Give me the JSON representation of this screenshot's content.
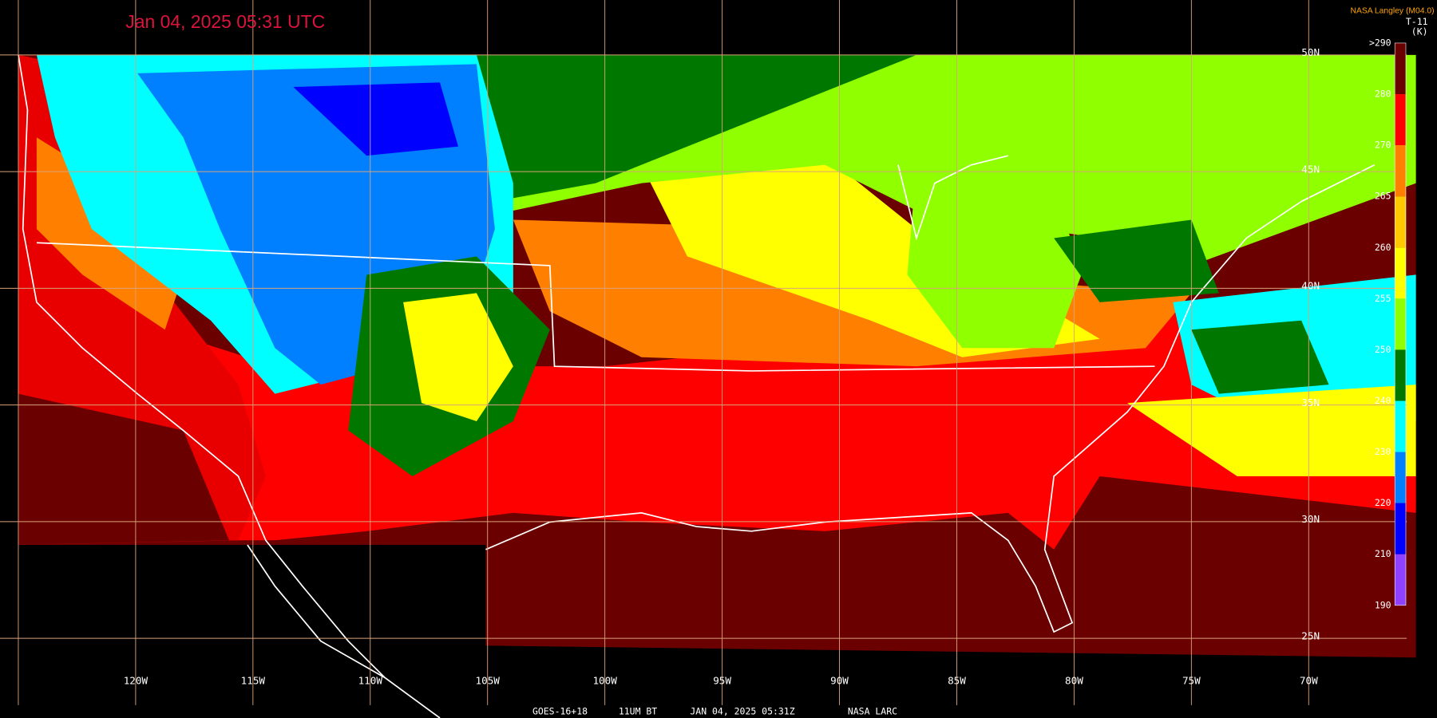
{
  "header": {
    "title": "Jan 04, 2025 05:31 UTC",
    "credit": "NASA Langley (M04.0)",
    "channel": "T-11",
    "unit": "(K)"
  },
  "grid": {
    "lon_labels": [
      "120W",
      "115W",
      "110W",
      "105W",
      "100W",
      "95W",
      "90W",
      "85W",
      "80W",
      "75W",
      "70W"
    ],
    "lat_labels": [
      "50N",
      "45N",
      "40N",
      "35N",
      "30N",
      "25N"
    ]
  },
  "colorbar": {
    "labels": [
      ">290",
      "280",
      "270",
      "265",
      "260",
      "255",
      "250",
      "240",
      "230",
      "220",
      "210",
      "190"
    ],
    "colors": [
      "#6b0000",
      "#ff0000",
      "#ff8000",
      "#ffc800",
      "#ffff00",
      "#90ff00",
      "#007800",
      "#00ffff",
      "#0080ff",
      "#0000ff",
      "#9040ff"
    ]
  },
  "footer": {
    "satellite": "GOES-16+18",
    "product": "11UM BT",
    "time": "JAN 04, 2025 05:31Z",
    "source": "NASA LARC"
  }
}
